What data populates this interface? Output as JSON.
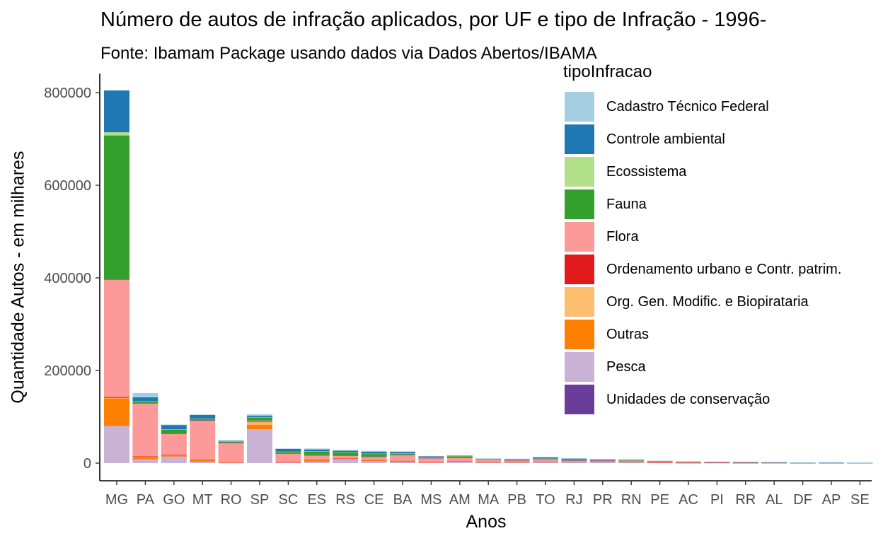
{
  "title": "Número de autos de infração aplicados, por UF e tipo de Infração - 1996-",
  "subtitle": "Fonte: Ibamam Package usando dados via Dados Abertos/IBAMA",
  "chart_data": {
    "type": "bar",
    "stacked": true,
    "xlabel": "Anos",
    "ylabel": "Quantidade Autos - em milhares",
    "ylim": [
      0,
      820000
    ],
    "yticks": [
      0,
      200000,
      400000,
      600000,
      800000
    ],
    "ytick_labels": [
      "0",
      "200000",
      "400000",
      "600000",
      "800000"
    ],
    "grid": false,
    "legend_title": "tipoInfracao",
    "legend_position": "top-right",
    "categories": [
      "MG",
      "PA",
      "GO",
      "MT",
      "RO",
      "SP",
      "SC",
      "ES",
      "RS",
      "CE",
      "BA",
      "MS",
      "AM",
      "MA",
      "PB",
      "TO",
      "RJ",
      "PR",
      "RN",
      "PE",
      "AC",
      "PI",
      "RR",
      "AL",
      "DF",
      "AP",
      "SE"
    ],
    "series": [
      {
        "name": "Pesca",
        "color": "#CAB2D6",
        "values": [
          80000,
          8000,
          14000,
          3000,
          500,
          73000,
          1000,
          3000,
          8000,
          4000,
          2000,
          1500,
          3000,
          1500,
          1000,
          2000,
          2000,
          2500,
          1500,
          800,
          300,
          500,
          200,
          300,
          100,
          200,
          100
        ]
      },
      {
        "name": "Outras",
        "color": "#FF7F00",
        "values": [
          60000,
          5000,
          3000,
          4000,
          1500,
          10000,
          1000,
          3500,
          2000,
          2000,
          1500,
          500,
          1000,
          500,
          1500,
          1000,
          1000,
          1000,
          1000,
          500,
          300,
          300,
          200,
          200,
          100,
          100,
          100
        ]
      },
      {
        "name": "Org. Gen. Modific. e Biopirataria",
        "color": "#FDBF6F",
        "values": [
          1000,
          1000,
          300,
          300,
          100,
          6000,
          200,
          500,
          200,
          500,
          300,
          100,
          100,
          100,
          300,
          100,
          200,
          100,
          100,
          100,
          50,
          50,
          50,
          50,
          50,
          50,
          50
        ]
      },
      {
        "name": "Ordenamento urbano e Contr. patrim.",
        "color": "#E31A1C",
        "values": [
          2000,
          500,
          200,
          100,
          50,
          200,
          50,
          100,
          100,
          100,
          100,
          50,
          50,
          50,
          50,
          50,
          100,
          50,
          50,
          50,
          20,
          20,
          20,
          20,
          20,
          20,
          20
        ]
      },
      {
        "name": "Flora",
        "color": "#FB9A99",
        "values": [
          253000,
          115000,
          46000,
          85000,
          42000,
          2500,
          19000,
          10000,
          6000,
          7500,
          14000,
          9000,
          8000,
          6000,
          3500,
          5500,
          2500,
          2500,
          2500,
          2500,
          2000,
          1200,
          1200,
          500,
          300,
          200,
          200
        ]
      },
      {
        "name": "Unidades de conservação",
        "color": "#6A3D9A",
        "values": [
          1500,
          300,
          200,
          100,
          100,
          200,
          100,
          100,
          100,
          100,
          100,
          100,
          100,
          100,
          100,
          100,
          100,
          50,
          50,
          50,
          50,
          50,
          50,
          50,
          50,
          50,
          50
        ]
      },
      {
        "name": "Fauna",
        "color": "#33A02C",
        "values": [
          310000,
          4000,
          9000,
          3000,
          2500,
          7000,
          3000,
          8000,
          7000,
          6000,
          3000,
          1500,
          3000,
          500,
          1500,
          1000,
          1200,
          800,
          800,
          300,
          300,
          300,
          500,
          800,
          300,
          200,
          100
        ]
      },
      {
        "name": "Ecossistema",
        "color": "#B2DF8A",
        "values": [
          7000,
          500,
          500,
          500,
          300,
          500,
          300,
          300,
          300,
          200,
          300,
          200,
          300,
          100,
          200,
          100,
          300,
          100,
          100,
          100,
          100,
          100,
          100,
          100,
          200,
          100,
          100
        ]
      },
      {
        "name": "Controle ambiental",
        "color": "#1F78B4",
        "values": [
          90000,
          8000,
          9000,
          8000,
          1500,
          3000,
          6000,
          4000,
          3000,
          4000,
          3000,
          2000,
          1000,
          1000,
          1000,
          3000,
          2500,
          1500,
          1500,
          500,
          500,
          500,
          500,
          200,
          200,
          200,
          200
        ]
      },
      {
        "name": "Cadastro Técnico Federal",
        "color": "#A6CEE3",
        "values": [
          1000,
          9000,
          1000,
          1000,
          500,
          3000,
          1000,
          2000,
          1500,
          2000,
          1000,
          500,
          500,
          300,
          500,
          500,
          500,
          300,
          300,
          300,
          200,
          200,
          200,
          200,
          200,
          700,
          100
        ]
      }
    ],
    "legend_order": [
      "Cadastro Técnico Federal",
      "Controle ambiental",
      "Ecossistema",
      "Fauna",
      "Flora",
      "Ordenamento urbano e Contr. patrim.",
      "Org. Gen. Modific. e Biopirataria",
      "Outras",
      "Pesca",
      "Unidades de conservação"
    ]
  }
}
